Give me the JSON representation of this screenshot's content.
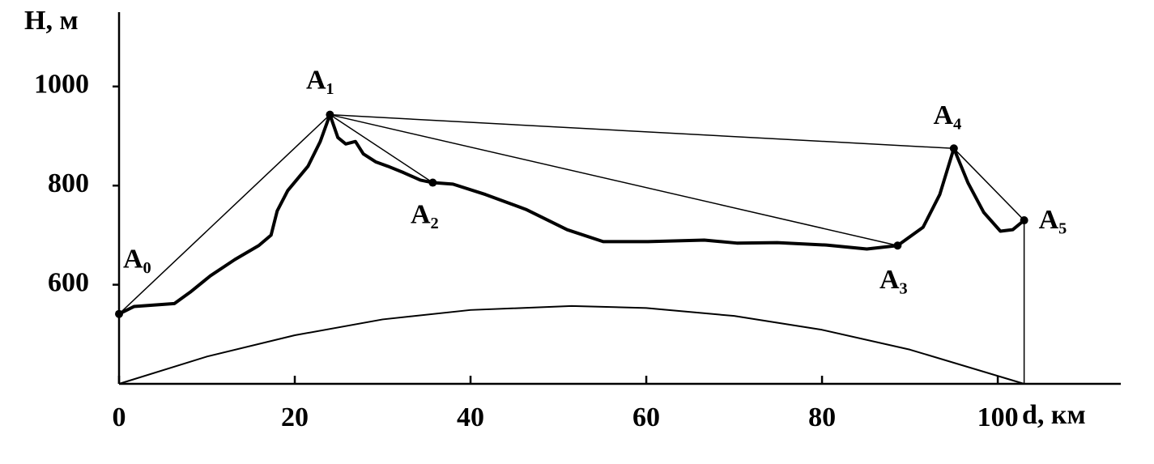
{
  "chart_data": {
    "type": "line",
    "y_label": "H, м",
    "x_label": "d, км",
    "xlim": [
      0,
      114
    ],
    "ylim": [
      400,
      1150
    ],
    "xticks": [
      0,
      20,
      40,
      60,
      80,
      100
    ],
    "yticks": [
      600,
      800,
      1000
    ],
    "profile": {
      "x": [
        0,
        1.7,
        6.3,
        8.1,
        10.4,
        13.2,
        15.9,
        17.3,
        18.0,
        19.2,
        21.5,
        22.9,
        24,
        24.9,
        25.8,
        26.9,
        27.8,
        29.2,
        30.6,
        32.4,
        34.3,
        35.7,
        38,
        41.7,
        46.3,
        51,
        55.1,
        60.2,
        66.6,
        70.3,
        74.9,
        80.5,
        85.1,
        88.6,
        91.5,
        93.4,
        95,
        96.6,
        98.4,
        100.3,
        101.7,
        103
      ],
      "y": [
        541,
        556,
        562,
        585,
        618,
        651,
        679,
        700,
        749,
        790,
        839,
        889,
        943,
        897,
        884,
        889,
        864,
        848,
        839,
        826,
        811,
        806,
        803,
        782,
        752,
        711,
        687,
        687,
        690,
        684,
        685,
        680,
        672,
        679,
        716,
        782,
        875,
        806,
        746,
        708,
        711,
        730
      ]
    },
    "curvature": {
      "x": [
        0,
        10,
        20,
        30,
        40,
        51.5,
        60,
        70,
        80,
        90,
        103
      ],
      "y": [
        400,
        455,
        498,
        530,
        549,
        557,
        553,
        537,
        509,
        469,
        400
      ]
    },
    "points": [
      {
        "label": "A₀",
        "x": 0,
        "y": 541
      },
      {
        "label": "A₁",
        "x": 24,
        "y": 943
      },
      {
        "label": "A₂",
        "x": 35.7,
        "y": 806
      },
      {
        "label": "A₃",
        "x": 88.6,
        "y": 679
      },
      {
        "label": "A₄",
        "x": 95,
        "y": 875
      },
      {
        "label": "A₅",
        "x": 103,
        "y": 730
      }
    ]
  }
}
